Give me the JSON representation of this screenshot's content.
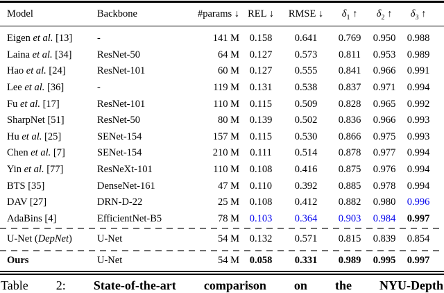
{
  "colors": {
    "second_best_blue": "#0505ee",
    "text": "#000000",
    "dashed_rule": "#6e6e6e"
  },
  "table": {
    "headers": [
      {
        "key": "model",
        "label": "Model",
        "sub": "",
        "arrow": ""
      },
      {
        "key": "backbone",
        "label": "Backbone",
        "sub": "",
        "arrow": ""
      },
      {
        "key": "params",
        "label": "#params",
        "sub": "",
        "arrow": "↓"
      },
      {
        "key": "rel",
        "label": "REL",
        "sub": "",
        "arrow": "↓"
      },
      {
        "key": "rmse",
        "label": "RMSE",
        "sub": "",
        "arrow": "↓"
      },
      {
        "key": "delta1",
        "label": "δ",
        "sub": "1",
        "arrow": "↑"
      },
      {
        "key": "delta2",
        "label": "δ",
        "sub": "2",
        "arrow": "↑"
      },
      {
        "key": "delta3",
        "label": "δ",
        "sub": "3",
        "arrow": "↑"
      }
    ],
    "rows": [
      {
        "model": "Eigen et al. [13]",
        "backbone": "-",
        "params": "141 M",
        "values": [
          "0.158",
          "0.641",
          "0.769",
          "0.950",
          "0.988"
        ],
        "value_styles": [
          "",
          "",
          "",
          "",
          ""
        ]
      },
      {
        "model": "Laina et al. [34]",
        "backbone": "ResNet-50",
        "params": "64 M",
        "values": [
          "0.127",
          "0.573",
          "0.811",
          "0.953",
          "0.989"
        ],
        "value_styles": [
          "",
          "",
          "",
          "",
          ""
        ]
      },
      {
        "model": "Hao et al. [24]",
        "backbone": "ResNet-101",
        "params": "60 M",
        "values": [
          "0.127",
          "0.555",
          "0.841",
          "0.966",
          "0.991"
        ],
        "value_styles": [
          "",
          "",
          "",
          "",
          ""
        ]
      },
      {
        "model": "Lee et al. [36]",
        "backbone": "-",
        "params": "119 M",
        "values": [
          "0.131",
          "0.538",
          "0.837",
          "0.971",
          "0.994"
        ],
        "value_styles": [
          "",
          "",
          "",
          "",
          ""
        ]
      },
      {
        "model": "Fu et al. [17]",
        "backbone": "ResNet-101",
        "params": "110 M",
        "values": [
          "0.115",
          "0.509",
          "0.828",
          "0.965",
          "0.992"
        ],
        "value_styles": [
          "",
          "",
          "",
          "",
          ""
        ]
      },
      {
        "model": "SharpNet [51]",
        "backbone": "ResNet-50",
        "params": "80 M",
        "values": [
          "0.139",
          "0.502",
          "0.836",
          "0.966",
          "0.993"
        ],
        "value_styles": [
          "",
          "",
          "",
          "",
          ""
        ]
      },
      {
        "model": "Hu et al. [25]",
        "backbone": "SENet-154",
        "params": "157 M",
        "values": [
          "0.115",
          "0.530",
          "0.866",
          "0.975",
          "0.993"
        ],
        "value_styles": [
          "",
          "",
          "",
          "",
          ""
        ]
      },
      {
        "model": "Chen et al. [7]",
        "backbone": "SENet-154",
        "params": "210 M",
        "values": [
          "0.111",
          "0.514",
          "0.878",
          "0.977",
          "0.994"
        ],
        "value_styles": [
          "",
          "",
          "",
          "",
          ""
        ]
      },
      {
        "model": "Yin et al. [77]",
        "backbone": "ResNeXt-101",
        "params": "110 M",
        "values": [
          "0.108",
          "0.416",
          "0.875",
          "0.976",
          "0.994"
        ],
        "value_styles": [
          "",
          "",
          "",
          "",
          ""
        ]
      },
      {
        "model": "BTS [35]",
        "backbone": "DenseNet-161",
        "params": "47 M",
        "values": [
          "0.110",
          "0.392",
          "0.885",
          "0.978",
          "0.994"
        ],
        "value_styles": [
          "",
          "",
          "",
          "",
          ""
        ]
      },
      {
        "model": "DAV [27]",
        "backbone": "DRN-D-22",
        "params": "25 M",
        "values": [
          "0.108",
          "0.412",
          "0.882",
          "0.980",
          "0.996"
        ],
        "value_styles": [
          "",
          "",
          "",
          "",
          "blue"
        ]
      },
      {
        "model": "AdaBins [4]",
        "backbone": "EfficientNet-B5",
        "params": "78 M",
        "values": [
          "0.103",
          "0.364",
          "0.903",
          "0.984",
          "0.997"
        ],
        "value_styles": [
          "blue",
          "blue",
          "blue",
          "blue",
          "bold"
        ]
      }
    ],
    "baseline_row": {
      "model": "U-Net (DepNet)",
      "model_bold": false,
      "backbone": "U-Net",
      "params": "54 M",
      "values": [
        "0.132",
        "0.571",
        "0.815",
        "0.839",
        "0.854"
      ],
      "value_styles": [
        "",
        "",
        "",
        "",
        ""
      ]
    },
    "ours_row": {
      "model": "Ours",
      "model_bold": true,
      "backbone": "U-Net",
      "params": "54 M",
      "values": [
        "0.058",
        "0.331",
        "0.989",
        "0.995",
        "0.997"
      ],
      "value_styles": [
        "bold",
        "bold",
        "bold",
        "bold",
        "bold"
      ]
    }
  },
  "caption": {
    "label": "Table 2:",
    "title": "State-of-the-art comparison on the NYU-Depth"
  }
}
